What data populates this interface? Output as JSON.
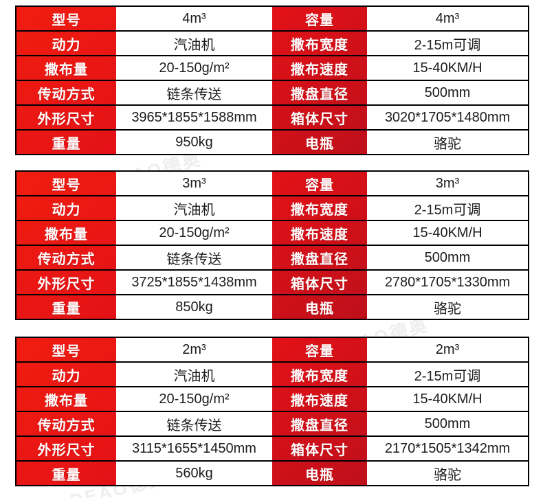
{
  "colors": {
    "red_bright": "#f11d10",
    "red_mid": "#e21117",
    "red_dark": "#a50e1b",
    "border": "#000000",
    "label_text": "#ffffff",
    "value_text": "#1c1c1c"
  },
  "watermark": {
    "text": "DEAO德奥"
  },
  "tables": [
    {
      "rows": [
        {
          "l1": "型号",
          "v1": "4m³",
          "l2": "容量",
          "v2": "4m³"
        },
        {
          "l1": "动力",
          "v1": "汽油机",
          "l2": "撒布宽度",
          "v2": "2-15m可调"
        },
        {
          "l1": "撒布量",
          "v1": "20-150g/m²",
          "l2": "撒布速度",
          "v2": "15-40KM/H"
        },
        {
          "l1": "传动方式",
          "v1": "链条传送",
          "l2": "撒盘直径",
          "v2": "500mm"
        },
        {
          "l1": "外形尺寸",
          "v1": "3965*1855*1588mm",
          "l2": "箱体尺寸",
          "v2": "3020*1705*1480mm"
        },
        {
          "l1": "重量",
          "v1": "950kg",
          "l2": "电瓶",
          "v2": "骆驼"
        }
      ]
    },
    {
      "rows": [
        {
          "l1": "型号",
          "v1": "3m³",
          "l2": "容量",
          "v2": "3m³"
        },
        {
          "l1": "动力",
          "v1": "汽油机",
          "l2": "撒布宽度",
          "v2": "2-15m可调"
        },
        {
          "l1": "撒布量",
          "v1": "20-150g/m²",
          "l2": "撒布速度",
          "v2": "15-40KM/H"
        },
        {
          "l1": "传动方式",
          "v1": "链条传送",
          "l2": "撒盘直径",
          "v2": "500mm"
        },
        {
          "l1": "外形尺寸",
          "v1": "3725*1855*1438mm",
          "l2": "箱体尺寸",
          "v2": "2780*1705*1330mm"
        },
        {
          "l1": "重量",
          "v1": "850kg",
          "l2": "电瓶",
          "v2": "骆驼"
        }
      ]
    },
    {
      "rows": [
        {
          "l1": "型号",
          "v1": "2m³",
          "l2": "容量",
          "v2": "2m³"
        },
        {
          "l1": "动力",
          "v1": "汽油机",
          "l2": "撒布宽度",
          "v2": "2-15m可调"
        },
        {
          "l1": "撒布量",
          "v1": "20-150g/m²",
          "l2": "撒布速度",
          "v2": "15-40KM/H"
        },
        {
          "l1": "传动方式",
          "v1": "链条传送",
          "l2": "撒盘直径",
          "v2": "500mm"
        },
        {
          "l1": "外形尺寸",
          "v1": "3115*1655*1450mm",
          "l2": "箱体尺寸",
          "v2": "2170*1505*1342mm"
        },
        {
          "l1": "重量",
          "v1": "560kg",
          "l2": "电瓶",
          "v2": "骆驼"
        }
      ]
    }
  ]
}
